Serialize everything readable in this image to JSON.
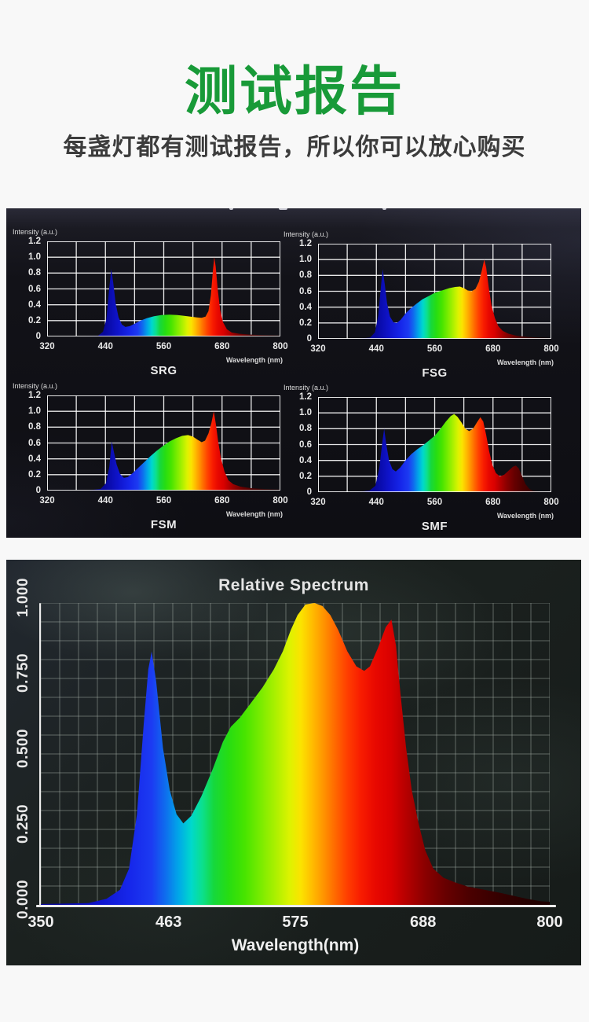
{
  "header": {
    "title": "测试报告",
    "subtitle": "每盏灯都有测试报告，所以你可以放心购买"
  },
  "colors": {
    "title_green": "#189a38",
    "subtitle_gray": "#3c3c3c",
    "page_background": "#f8f8f8",
    "small_panel_background": "#121218",
    "big_panel_background": "#1b211f",
    "chart_text": "#ececec",
    "axis_white": "#ededed"
  },
  "spectrum_gradient": [
    [
      365,
      "#07079a"
    ],
    [
      400,
      "#0f14cc"
    ],
    [
      428,
      "#1626ea"
    ],
    [
      448,
      "#1c3bf2"
    ],
    [
      460,
      "#0f6cee"
    ],
    [
      472,
      "#00a8e8"
    ],
    [
      483,
      "#00d8cc"
    ],
    [
      493,
      "#0ce08c"
    ],
    [
      503,
      "#16d83c"
    ],
    [
      516,
      "#27dd12"
    ],
    [
      530,
      "#46e400"
    ],
    [
      545,
      "#7cec00"
    ],
    [
      558,
      "#adf000"
    ],
    [
      570,
      "#ddf300"
    ],
    [
      580,
      "#fbe300"
    ],
    [
      590,
      "#ffbc00"
    ],
    [
      600,
      "#ff9400"
    ],
    [
      610,
      "#ff6a00"
    ],
    [
      621,
      "#ff3e00"
    ],
    [
      633,
      "#f81c00"
    ],
    [
      646,
      "#e80800"
    ],
    [
      660,
      "#d90100"
    ],
    [
      674,
      "#b30000"
    ],
    [
      690,
      "#8a0000"
    ],
    [
      708,
      "#670000"
    ],
    [
      730,
      "#4a0000"
    ],
    [
      755,
      "#350000"
    ],
    [
      780,
      "#260000"
    ],
    [
      800,
      "#1d0000"
    ]
  ],
  "chart_data": [
    {
      "id": "srg",
      "type": "area",
      "title": "SRG",
      "ylabel": "Intensity (a.u.)",
      "xlabel": "Wavelength (nm)",
      "xlim": [
        320,
        800
      ],
      "ylim": [
        0,
        1.2
      ],
      "xticks": [
        "320",
        "440",
        "560",
        "680",
        "800"
      ],
      "yticks": [
        "1.2",
        "1.0",
        "0.8",
        "0.6",
        "0.4",
        "0.2",
        "0"
      ],
      "grid": {
        "cols": 8,
        "rows": 6
      },
      "series": [
        [
          400,
          0
        ],
        [
          425,
          0.01
        ],
        [
          435,
          0.06
        ],
        [
          442,
          0.22
        ],
        [
          448,
          0.62
        ],
        [
          452,
          0.85
        ],
        [
          456,
          0.68
        ],
        [
          461,
          0.42
        ],
        [
          467,
          0.24
        ],
        [
          474,
          0.15
        ],
        [
          481,
          0.12
        ],
        [
          490,
          0.13
        ],
        [
          500,
          0.16
        ],
        [
          512,
          0.2
        ],
        [
          525,
          0.23
        ],
        [
          540,
          0.255
        ],
        [
          555,
          0.27
        ],
        [
          572,
          0.275
        ],
        [
          588,
          0.27
        ],
        [
          602,
          0.26
        ],
        [
          615,
          0.25
        ],
        [
          628,
          0.24
        ],
        [
          638,
          0.235
        ],
        [
          646,
          0.25
        ],
        [
          652,
          0.32
        ],
        [
          657,
          0.52
        ],
        [
          661,
          0.82
        ],
        [
          664,
          1.0
        ],
        [
          667,
          0.88
        ],
        [
          671,
          0.6
        ],
        [
          676,
          0.34
        ],
        [
          682,
          0.18
        ],
        [
          690,
          0.09
        ],
        [
          700,
          0.05
        ],
        [
          715,
          0.035
        ],
        [
          735,
          0.025
        ],
        [
          760,
          0.018
        ],
        [
          800,
          0.012
        ]
      ]
    },
    {
      "id": "fsg",
      "type": "area",
      "title": "FSG",
      "ylabel": "Intensity (a.u.)",
      "xlabel": "Wavelength (nm)",
      "xlim": [
        320,
        800
      ],
      "ylim": [
        0,
        1.2
      ],
      "xticks": [
        "320",
        "440",
        "560",
        "680",
        "800"
      ],
      "yticks": [
        "1.2",
        "1.0",
        "0.8",
        "0.6",
        "0.4",
        "0.2",
        "0"
      ],
      "grid": {
        "cols": 8,
        "rows": 6
      },
      "series": [
        [
          400,
          0
        ],
        [
          427,
          0.015
        ],
        [
          437,
          0.08
        ],
        [
          444,
          0.3
        ],
        [
          450,
          0.7
        ],
        [
          453,
          0.88
        ],
        [
          457,
          0.7
        ],
        [
          462,
          0.45
        ],
        [
          468,
          0.28
        ],
        [
          475,
          0.21
        ],
        [
          482,
          0.2
        ],
        [
          490,
          0.24
        ],
        [
          500,
          0.32
        ],
        [
          510,
          0.38
        ],
        [
          522,
          0.44
        ],
        [
          535,
          0.5
        ],
        [
          548,
          0.54
        ],
        [
          560,
          0.58
        ],
        [
          575,
          0.61
        ],
        [
          590,
          0.64
        ],
        [
          602,
          0.655
        ],
        [
          612,
          0.66
        ],
        [
          620,
          0.64
        ],
        [
          628,
          0.61
        ],
        [
          636,
          0.6
        ],
        [
          644,
          0.63
        ],
        [
          651,
          0.72
        ],
        [
          657,
          0.86
        ],
        [
          662,
          1.0
        ],
        [
          666,
          0.9
        ],
        [
          671,
          0.66
        ],
        [
          677,
          0.42
        ],
        [
          684,
          0.26
        ],
        [
          691,
          0.16
        ],
        [
          700,
          0.1
        ],
        [
          712,
          0.065
        ],
        [
          728,
          0.04
        ],
        [
          750,
          0.025
        ],
        [
          775,
          0.015
        ],
        [
          800,
          0.01
        ]
      ]
    },
    {
      "id": "fsm",
      "type": "area",
      "title": "FSM",
      "ylabel": "Intensity (a.u.)",
      "xlabel": "Wavelength (nm)",
      "xlim": [
        320,
        800
      ],
      "ylim": [
        0,
        1.2
      ],
      "xticks": [
        "320",
        "440",
        "560",
        "680",
        "800"
      ],
      "yticks": [
        "1.2",
        "1.0",
        "0.8",
        "0.6",
        "0.4",
        "0.2",
        "0"
      ],
      "grid": {
        "cols": 8,
        "rows": 6
      },
      "series": [
        [
          400,
          0
        ],
        [
          430,
          0.02
        ],
        [
          441,
          0.09
        ],
        [
          448,
          0.3
        ],
        [
          453,
          0.62
        ],
        [
          457,
          0.5
        ],
        [
          463,
          0.33
        ],
        [
          470,
          0.21
        ],
        [
          478,
          0.16
        ],
        [
          486,
          0.17
        ],
        [
          496,
          0.22
        ],
        [
          508,
          0.29
        ],
        [
          520,
          0.36
        ],
        [
          532,
          0.43
        ],
        [
          545,
          0.5
        ],
        [
          558,
          0.56
        ],
        [
          572,
          0.62
        ],
        [
          585,
          0.66
        ],
        [
          598,
          0.69
        ],
        [
          610,
          0.7
        ],
        [
          620,
          0.68
        ],
        [
          630,
          0.64
        ],
        [
          638,
          0.61
        ],
        [
          645,
          0.63
        ],
        [
          652,
          0.72
        ],
        [
          658,
          0.85
        ],
        [
          663,
          1.0
        ],
        [
          667,
          0.85
        ],
        [
          672,
          0.62
        ],
        [
          678,
          0.4
        ],
        [
          685,
          0.24
        ],
        [
          693,
          0.13
        ],
        [
          703,
          0.08
        ],
        [
          718,
          0.05
        ],
        [
          740,
          0.03
        ],
        [
          770,
          0.018
        ],
        [
          800,
          0.012
        ]
      ]
    },
    {
      "id": "smf",
      "type": "area",
      "title": "SMF",
      "ylabel": "Intensity (a.u.)",
      "xlabel": "Wavelength (nm)",
      "xlim": [
        320,
        800
      ],
      "ylim": [
        0,
        1.2
      ],
      "xticks": [
        "320",
        "440",
        "560",
        "680",
        "800"
      ],
      "yticks": [
        "1.2",
        "1.0",
        "0.8",
        "0.6",
        "0.4",
        "0.2",
        "0"
      ],
      "grid": {
        "cols": 8,
        "rows": 6
      },
      "series": [
        [
          400,
          0
        ],
        [
          426,
          0.02
        ],
        [
          438,
          0.08
        ],
        [
          446,
          0.3
        ],
        [
          452,
          0.62
        ],
        [
          456,
          0.8
        ],
        [
          460,
          0.62
        ],
        [
          466,
          0.4
        ],
        [
          473,
          0.29
        ],
        [
          480,
          0.26
        ],
        [
          489,
          0.31
        ],
        [
          500,
          0.4
        ],
        [
          512,
          0.48
        ],
        [
          524,
          0.54
        ],
        [
          536,
          0.59
        ],
        [
          548,
          0.65
        ],
        [
          560,
          0.71
        ],
        [
          572,
          0.8
        ],
        [
          583,
          0.89
        ],
        [
          593,
          0.96
        ],
        [
          600,
          0.985
        ],
        [
          607,
          0.95
        ],
        [
          615,
          0.88
        ],
        [
          623,
          0.8
        ],
        [
          631,
          0.77
        ],
        [
          639,
          0.8
        ],
        [
          647,
          0.88
        ],
        [
          654,
          0.945
        ],
        [
          660,
          0.89
        ],
        [
          666,
          0.72
        ],
        [
          672,
          0.52
        ],
        [
          679,
          0.34
        ],
        [
          686,
          0.24
        ],
        [
          694,
          0.2
        ],
        [
          703,
          0.22
        ],
        [
          712,
          0.27
        ],
        [
          721,
          0.32
        ],
        [
          727,
          0.335
        ],
        [
          733,
          0.3
        ],
        [
          740,
          0.2
        ],
        [
          747,
          0.1
        ],
        [
          755,
          0.04
        ],
        [
          763,
          0.015
        ],
        [
          780,
          0.005
        ],
        [
          800,
          0
        ]
      ]
    },
    {
      "id": "relative",
      "type": "area",
      "title": "Relative Spectrum",
      "ylabel": "",
      "xlabel": "Wavelength(nm)",
      "xlim": [
        350,
        800
      ],
      "ylim": [
        0,
        1
      ],
      "xticks": [
        "350",
        "463",
        "575",
        "688",
        "800"
      ],
      "yticks": [
        "1.000",
        "0.750",
        "0.500",
        "0.250",
        "0.000"
      ],
      "grid": {
        "cols": 27,
        "rows": 16
      },
      "series": [
        [
          350,
          0.003
        ],
        [
          392,
          0.006
        ],
        [
          408,
          0.02
        ],
        [
          420,
          0.05
        ],
        [
          428,
          0.12
        ],
        [
          435,
          0.3
        ],
        [
          441,
          0.6
        ],
        [
          445,
          0.78
        ],
        [
          448,
          0.84
        ],
        [
          452,
          0.74
        ],
        [
          458,
          0.52
        ],
        [
          464,
          0.38
        ],
        [
          470,
          0.3
        ],
        [
          476,
          0.27
        ],
        [
          483,
          0.295
        ],
        [
          492,
          0.36
        ],
        [
          502,
          0.45
        ],
        [
          511,
          0.54
        ],
        [
          518,
          0.59
        ],
        [
          526,
          0.62
        ],
        [
          536,
          0.67
        ],
        [
          546,
          0.72
        ],
        [
          556,
          0.78
        ],
        [
          564,
          0.84
        ],
        [
          571,
          0.91
        ],
        [
          577,
          0.96
        ],
        [
          584,
          0.995
        ],
        [
          592,
          1.0
        ],
        [
          599,
          0.99
        ],
        [
          606,
          0.96
        ],
        [
          613,
          0.91
        ],
        [
          621,
          0.84
        ],
        [
          629,
          0.79
        ],
        [
          636,
          0.775
        ],
        [
          641,
          0.79
        ],
        [
          648,
          0.85
        ],
        [
          655,
          0.92
        ],
        [
          660,
          0.945
        ],
        [
          664,
          0.86
        ],
        [
          668,
          0.7
        ],
        [
          673,
          0.52
        ],
        [
          678,
          0.38
        ],
        [
          684,
          0.27
        ],
        [
          690,
          0.18
        ],
        [
          697,
          0.12
        ],
        [
          706,
          0.09
        ],
        [
          716,
          0.075
        ],
        [
          728,
          0.06
        ],
        [
          742,
          0.05
        ],
        [
          756,
          0.04
        ],
        [
          768,
          0.03
        ],
        [
          780,
          0.02
        ],
        [
          792,
          0.012
        ],
        [
          800,
          0.01
        ]
      ]
    }
  ]
}
